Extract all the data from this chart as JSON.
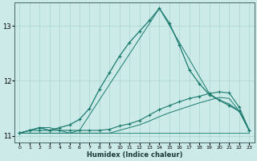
{
  "xlabel": "Humidex (Indice chaleur)",
  "bg_color": "#cceae8",
  "grid_color": "#aad4d0",
  "line_color": "#1a7a6e",
  "xlim": [
    -0.5,
    23.5
  ],
  "ylim": [
    10.88,
    13.42
  ],
  "xticks": [
    0,
    1,
    2,
    3,
    4,
    5,
    6,
    7,
    8,
    9,
    10,
    11,
    12,
    13,
    14,
    15,
    16,
    17,
    18,
    19,
    20,
    21,
    22,
    23
  ],
  "yticks": [
    11,
    12,
    13
  ],
  "line1_x": [
    0,
    1,
    2,
    3,
    4,
    5,
    6,
    7,
    8,
    9,
    10,
    11,
    12,
    13,
    14,
    15,
    16,
    17,
    18,
    19,
    20,
    21,
    22,
    23
  ],
  "line1_y": [
    11.05,
    11.1,
    11.15,
    11.1,
    11.15,
    11.2,
    11.3,
    11.5,
    11.85,
    12.15,
    12.45,
    12.7,
    12.9,
    13.1,
    13.32,
    13.05,
    12.65,
    12.2,
    11.95,
    11.75,
    11.65,
    11.55,
    11.45,
    11.1
  ],
  "line2_x": [
    0,
    1,
    2,
    3,
    4,
    5,
    6,
    7,
    8,
    9,
    10,
    11,
    12,
    13,
    14,
    15,
    16,
    17,
    18,
    19,
    20,
    21,
    22,
    23
  ],
  "line2_y": [
    11.05,
    11.1,
    11.1,
    11.1,
    11.1,
    11.1,
    11.1,
    11.1,
    11.1,
    11.12,
    11.18,
    11.22,
    11.28,
    11.38,
    11.48,
    11.55,
    11.62,
    11.68,
    11.72,
    11.77,
    11.8,
    11.78,
    11.52,
    11.1
  ],
  "line3_x": [
    0,
    1,
    2,
    3,
    4,
    5,
    6,
    7,
    8,
    9,
    10,
    11,
    12,
    13,
    14,
    15,
    16,
    17,
    18,
    19,
    20,
    21,
    22,
    23
  ],
  "line3_y": [
    11.05,
    11.05,
    11.05,
    11.05,
    11.05,
    11.05,
    11.05,
    11.05,
    11.05,
    11.05,
    11.1,
    11.15,
    11.2,
    11.27,
    11.35,
    11.42,
    11.48,
    11.54,
    11.6,
    11.65,
    11.7,
    11.68,
    11.45,
    11.1
  ],
  "line4_x": [
    0,
    1,
    2,
    3,
    4,
    5,
    6,
    7,
    8,
    9,
    10,
    11,
    12,
    13,
    14,
    15,
    16,
    17,
    18,
    19,
    20,
    21,
    22,
    23
  ],
  "line4_y": [
    11.05,
    11.05,
    11.05,
    11.05,
    11.05,
    11.05,
    11.05,
    11.05,
    11.05,
    11.05,
    11.05,
    11.05,
    11.05,
    11.05,
    11.05,
    11.05,
    11.05,
    11.05,
    11.05,
    11.05,
    11.05,
    11.05,
    11.05,
    11.05
  ],
  "line5_x": [
    0,
    2,
    3,
    4,
    5,
    6,
    7,
    14,
    19,
    20,
    21,
    22,
    23
  ],
  "line5_y": [
    11.05,
    11.15,
    11.15,
    11.1,
    11.05,
    11.1,
    11.38,
    13.32,
    11.77,
    11.65,
    11.58,
    11.45,
    11.1
  ]
}
